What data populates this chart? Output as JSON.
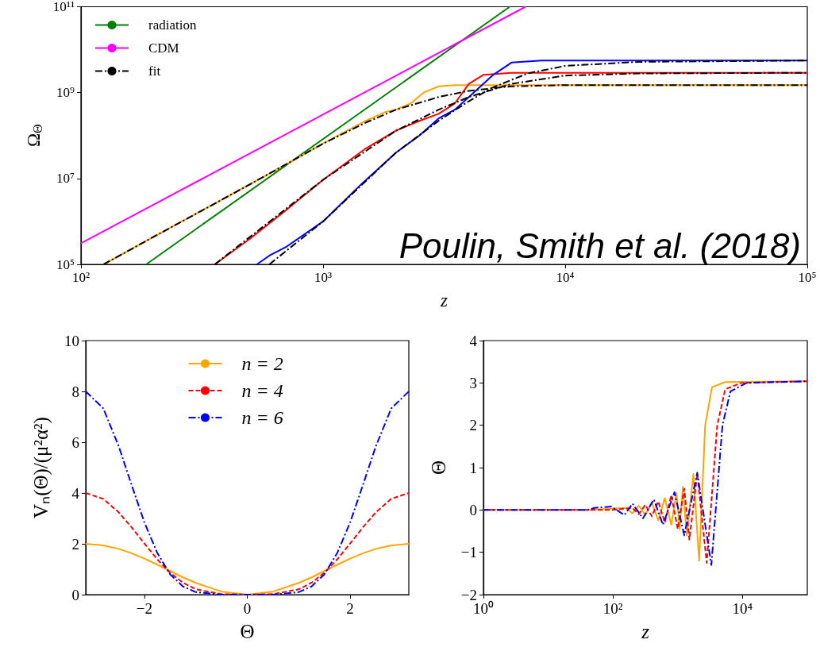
{
  "chart_data": [
    {
      "type": "line",
      "ylabel": "Ω$_{Θ}$",
      "xlabel": "z",
      "log": "xy",
      "marker": "none",
      "legend": "top left",
      "xlim": [
        100,
        100000
      ],
      "xticks": [
        {
          "value": 100,
          "label": "10²"
        },
        {
          "value": 1000,
          "label": "10³"
        },
        {
          "value": 10000,
          "label": "10⁴"
        },
        {
          "value": 100000,
          "label": "10⁵"
        }
      ],
      "ylim": [
        100000,
        100000000000
      ],
      "yticks": [
        {
          "value": 100000,
          "label": "10⁵"
        },
        {
          "value": 10000000,
          "label": "10⁷"
        },
        {
          "value": 1000000000,
          "label": "10⁹"
        },
        {
          "value": 100000000000,
          "label": "10¹¹"
        }
      ],
      "annotations": [
        "Poulin, Smith et al. (2018)"
      ],
      "series": [
        {
          "name": "radiation",
          "color": "#008000",
          "line_style": "solid",
          "x": [
            186,
            5900
          ],
          "values": [
            100000.0,
            100000000000.0
          ]
        },
        {
          "name": "CDM",
          "color": "#ff00ff",
          "line_style": "solid",
          "x": [
            100,
            6860
          ],
          "values": [
            310000.0,
            100000000000.0
          ]
        },
        {
          "color": "#ffa500",
          "line_style": "solid",
          "x": [
            124,
            200,
            400,
            600,
            1000,
            1500,
            1800,
            2000,
            2300,
            2600,
            3000,
            3500,
            100000
          ],
          "values": [
            100000.0,
            440000.0,
            3700000.0,
            13000000.0,
            65000000.0,
            220000000.0,
            350000000.0,
            400000000.0,
            560000000.0,
            1000000000.0,
            1400000000.0,
            1500000000.0,
            1500000000.0
          ]
        },
        {
          "color": "#ff0000",
          "line_style": "solid",
          "x": [
            357,
            500,
            700,
            1000,
            1500,
            2000,
            2500,
            3000,
            3500,
            4000,
            4600,
            6000,
            100000
          ],
          "values": [
            100000.0,
            400000.0,
            1800000.0,
            9300000.0,
            50000000.0,
            130000000.0,
            220000000.0,
            320000000.0,
            560000000.0,
            1600000000.0,
            2600000000.0,
            2900000000.0,
            2900000000.0
          ]
        },
        {
          "color": "#0000ff",
          "line_style": "solid",
          "x": [
            533,
            600,
            700,
            1000,
            1440,
            2000,
            2500,
            3000,
            3500,
            4000,
            5000,
            6000,
            8000,
            100000
          ],
          "values": [
            100000.0,
            160000.0,
            250000.0,
            1000000.0,
            7400000.0,
            40000000.0,
            100000000.0,
            250000000.0,
            400000000.0,
            790000000.0,
            2500000000.0,
            5000000000.0,
            5600000000.0,
            5600000000.0
          ]
        },
        {
          "name": "fit",
          "color": "#000000",
          "line_style": "dashdot",
          "x": [
            124,
            200,
            400,
            600,
            1000,
            1500,
            2000,
            3000,
            4000,
            6000,
            10000,
            100000
          ],
          "values": [
            100000.0,
            440000.0,
            3700000.0,
            13000000.0,
            65000000.0,
            200000000.0,
            400000000.0,
            790000000.0,
            1100000000.0,
            1400000000.0,
            1500000000.0,
            1500000000.0
          ]
        },
        {
          "color": "#000000",
          "line_style": "dashdot",
          "x": [
            357,
            1000,
            2000,
            3000,
            4000,
            6000,
            10000,
            20000,
            100000
          ],
          "values": [
            100000.0,
            9300000.0,
            130000000.0,
            400000000.0,
            790000000.0,
            1600000000.0,
            2500000000.0,
            2800000000.0,
            2900000000.0
          ]
        },
        {
          "color": "#000000",
          "line_style": "dashdot",
          "x": [
            600,
            1000,
            2000,
            3000,
            4000,
            5000,
            7000,
            10000,
            20000,
            100000
          ],
          "values": [
            100000.0,
            1000000.0,
            40000000.0,
            220000000.0,
            630000000.0,
            1300000000.0,
            2800000000.0,
            4200000000.0,
            5200000000.0,
            5600000000.0
          ]
        }
      ]
    },
    {
      "type": "line",
      "ylabel": "Vₙ(Θ)/(μ²α²)",
      "xlabel": "Θ",
      "marker": "none",
      "legend": "top",
      "xlim": [
        -3.1416,
        3.1416
      ],
      "xticks": [
        {
          "value": -2,
          "label": "−2"
        },
        0,
        2
      ],
      "ylim": [
        0,
        10
      ],
      "yticks": [
        0,
        2,
        4,
        6,
        8,
        10
      ],
      "x": [
        -3.1416,
        -2.8,
        -2.5,
        -2.25,
        -2,
        -1.75,
        -1.5,
        -1.25,
        -1,
        -0.5,
        0,
        0.5,
        1,
        1.25,
        1.5,
        1.75,
        2,
        2.25,
        2.5,
        2.8,
        3.1416
      ],
      "series": [
        {
          "name": "n = 2",
          "color": "#ffa500",
          "line_style": "solid",
          "values": [
            2,
            1.94,
            1.8,
            1.63,
            1.42,
            1.18,
            0.93,
            0.68,
            0.46,
            0.12,
            0,
            0.12,
            0.46,
            0.68,
            0.93,
            1.18,
            1.42,
            1.63,
            1.8,
            1.94,
            2
          ]
        },
        {
          "name": "n = 4",
          "color": "#ff0000",
          "line_style": "dashed",
          "values": [
            4,
            3.77,
            3.24,
            2.65,
            2.01,
            1.39,
            0.86,
            0.47,
            0.21,
            0.02,
            0,
            0.02,
            0.21,
            0.47,
            0.86,
            1.39,
            2.01,
            2.65,
            3.24,
            3.77,
            4
          ]
        },
        {
          "name": "n = 6",
          "color": "#0000ff",
          "line_style": "dashdot",
          "values": [
            8,
            7.33,
            5.84,
            4.32,
            2.84,
            1.64,
            0.8,
            0.32,
            0.1,
            0,
            0,
            0,
            0.1,
            0.32,
            0.8,
            1.64,
            2.84,
            4.32,
            5.84,
            7.33,
            8
          ]
        }
      ]
    },
    {
      "type": "line",
      "ylabel": "Θ",
      "xlabel": "z",
      "log": "x",
      "marker": "none",
      "xlim": [
        1,
        100000
      ],
      "xticks": [
        {
          "value": 1,
          "label": "10⁰"
        },
        {
          "value": 100,
          "label": "10²"
        },
        {
          "value": 10000,
          "label": "10⁴"
        }
      ],
      "ylim": [
        -2,
        4
      ],
      "yticks": [
        {
          "value": -2,
          "label": "−2"
        },
        {
          "value": -1,
          "label": "−1"
        },
        0,
        1,
        2,
        3,
        4
      ],
      "series": [
        {
          "color": "#ffa500",
          "line_style": "solid",
          "x": [
            1,
            40,
            158,
            200,
            251,
            316,
            398,
            501,
            631,
            794,
            955,
            1070,
            1200,
            1380,
            1740,
            2140,
            2650,
            3380,
            5400,
            100000
          ],
          "values": [
            0,
            0,
            0.05,
            -0.08,
            0.1,
            -0.12,
            0.18,
            -0.25,
            0.28,
            -0.35,
            0.4,
            -0.45,
            0.55,
            -0.6,
            0.85,
            -1.2,
            2.0,
            2.9,
            3.02,
            3.04
          ]
        },
        {
          "color": "#ff0000",
          "line_style": "dashed",
          "x": [
            1,
            100,
            200,
            251,
            316,
            398,
            501,
            631,
            794,
            1000,
            1260,
            1510,
            2000,
            2800,
            4070,
            5400,
            9500,
            100000
          ],
          "values": [
            0,
            0,
            0.05,
            -0.1,
            0.12,
            -0.15,
            0.2,
            -0.3,
            0.35,
            -0.45,
            0.5,
            -0.7,
            0.85,
            -1.25,
            2.0,
            2.85,
            3.0,
            3.04
          ]
        },
        {
          "color": "#0000ff",
          "line_style": "dashdot",
          "x": [
            1,
            40,
            52,
            94,
            150,
            200,
            290,
            427,
            590,
            890,
            1260,
            2000,
            3300,
            4900,
            6500,
            11500,
            100000
          ],
          "values": [
            0,
            0,
            0.05,
            0.08,
            -0.12,
            0.15,
            -0.2,
            0.25,
            -0.35,
            0.42,
            -0.6,
            0.88,
            -1.3,
            2.0,
            2.8,
            3.0,
            3.04
          ]
        }
      ]
    }
  ]
}
